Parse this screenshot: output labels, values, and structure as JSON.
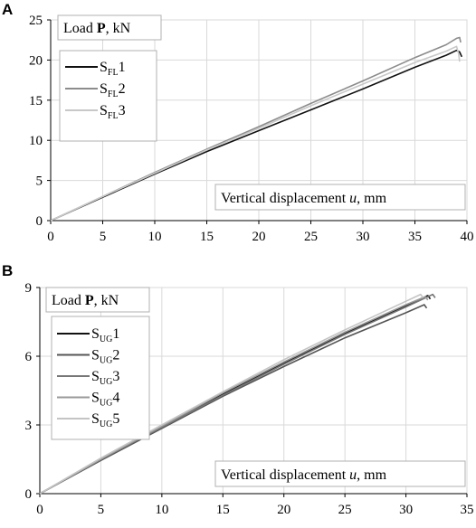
{
  "chart_data": [
    {
      "panel": "A",
      "type": "line",
      "ylabel_prefix": "Load ",
      "ylabel_bold": "P",
      "ylabel_suffix": ", kN",
      "xlabel_prefix": "Vertical displacement ",
      "xlabel_italic": "u",
      "xlabel_suffix": ", mm",
      "xlim": [
        0,
        40
      ],
      "ylim": [
        0,
        25
      ],
      "xticks": [
        0,
        5,
        10,
        15,
        20,
        25,
        30,
        35,
        40
      ],
      "yticks": [
        0,
        5,
        10,
        15,
        20,
        25
      ],
      "grid": true,
      "legend_position": "top-left",
      "series": [
        {
          "name_main": "S",
          "name_sub": "FL",
          "name_num": "1",
          "color": "#111111",
          "x": [
            0,
            5,
            10,
            15,
            20,
            25,
            30,
            35,
            38,
            39,
            39.3,
            39.5
          ],
          "y": [
            0,
            2.9,
            5.8,
            8.6,
            11.2,
            13.8,
            16.4,
            19.1,
            20.6,
            21.2,
            21.0,
            20.4
          ]
        },
        {
          "name_main": "S",
          "name_sub": "FL",
          "name_num": "2",
          "color": "#8c8c8c",
          "x": [
            0,
            5,
            10,
            15,
            20,
            25,
            30,
            35,
            38,
            39,
            39.3,
            39.4
          ],
          "y": [
            0,
            3.0,
            6.0,
            8.9,
            11.7,
            14.6,
            17.4,
            20.3,
            21.9,
            22.7,
            22.8,
            22.2
          ]
        },
        {
          "name_main": "S",
          "name_sub": "FL",
          "name_num": "3",
          "color": "#c8c8c8",
          "x": [
            0,
            5,
            10,
            15,
            20,
            25,
            30,
            35,
            38,
            39,
            39.2,
            39.3
          ],
          "y": [
            0,
            3.0,
            5.9,
            8.8,
            11.5,
            14.3,
            17.0,
            19.7,
            21.1,
            21.7,
            20.8,
            19.8
          ]
        }
      ]
    },
    {
      "panel": "B",
      "type": "line",
      "ylabel_prefix": "Load ",
      "ylabel_bold": "P",
      "ylabel_suffix": ", kN",
      "xlabel_prefix": "Vertical displacement ",
      "xlabel_italic": "u",
      "xlabel_suffix": ", mm",
      "xlim": [
        0,
        35
      ],
      "ylim": [
        0,
        9
      ],
      "xticks": [
        0,
        5,
        10,
        15,
        20,
        25,
        30,
        35
      ],
      "yticks": [
        0,
        3,
        6,
        9
      ],
      "grid": true,
      "legend_position": "top-left",
      "series": [
        {
          "name_main": "S",
          "name_sub": "UG",
          "name_num": "1",
          "color": "#111111",
          "x": [
            0,
            5,
            10,
            15,
            20,
            25,
            30,
            31.8,
            32.0
          ],
          "y": [
            0,
            1.5,
            2.95,
            4.35,
            5.7,
            7.0,
            8.2,
            8.65,
            8.5
          ]
        },
        {
          "name_main": "S",
          "name_sub": "UG",
          "name_num": "2",
          "color": "#555555",
          "x": [
            0,
            5,
            10,
            15,
            20,
            25,
            30,
            31.5,
            31.7
          ],
          "y": [
            0,
            1.45,
            2.85,
            4.25,
            5.55,
            6.8,
            7.9,
            8.25,
            8.1
          ]
        },
        {
          "name_main": "S",
          "name_sub": "UG",
          "name_num": "3",
          "color": "#777777",
          "x": [
            0,
            5,
            10,
            15,
            20,
            25,
            30,
            32.2,
            32.4
          ],
          "y": [
            0,
            1.5,
            2.9,
            4.3,
            5.65,
            6.95,
            8.15,
            8.7,
            8.55
          ]
        },
        {
          "name_main": "S",
          "name_sub": "UG",
          "name_num": "4",
          "color": "#9a9a9a",
          "x": [
            0,
            5,
            10,
            15,
            20,
            25,
            30,
            31.6,
            31.8
          ],
          "y": [
            0,
            1.5,
            2.95,
            4.4,
            5.75,
            7.05,
            8.25,
            8.6,
            8.45
          ]
        },
        {
          "name_main": "S",
          "name_sub": "UG",
          "name_num": "5",
          "color": "#c4c4c4",
          "x": [
            0,
            5,
            10,
            15,
            20,
            25,
            30,
            31.2,
            31.4
          ],
          "y": [
            0,
            1.55,
            3.0,
            4.45,
            5.85,
            7.15,
            8.4,
            8.7,
            8.55
          ]
        }
      ]
    }
  ]
}
